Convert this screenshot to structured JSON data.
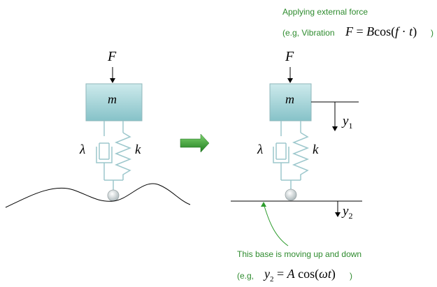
{
  "colors": {
    "green_text": "#2e8b2e",
    "mass_fill_top": "#bfe3e6",
    "mass_fill_bottom": "#86c2c8",
    "spring": "#9cc7cc",
    "arrow_green": "#2e9c2e"
  },
  "left_system": {
    "force_label": "F",
    "mass_label": "m",
    "damper_label": "λ",
    "spring_label": "k"
  },
  "right_system": {
    "force_label": "F",
    "mass_label": "m",
    "damper_label": "λ",
    "spring_label": "k",
    "y1_var": "y",
    "y1_sub": "1",
    "y2_var": "y",
    "y2_sub": "2"
  },
  "top_note": {
    "title": "Applying external force",
    "example_prefix": "(e.g, Vibration",
    "example_eq_F": "F",
    "example_eq_eq": " = ",
    "example_eq_B": "B",
    "example_eq_cos": "cos(",
    "example_eq_f": "f",
    "example_eq_dot": " · ",
    "example_eq_t": "t",
    "example_eq_close": ")",
    "example_suffix": ")"
  },
  "bottom_note": {
    "title": "This base is moving up and down",
    "example_prefix": "(e.g,",
    "example_eq_y": "y",
    "example_eq_sub": "2",
    "example_eq_eq": " = ",
    "example_eq_A": "A",
    "example_eq_cos": "cos(",
    "example_eq_w": "ωt",
    "example_eq_close": ")",
    "example_suffix": ")"
  },
  "transition_arrow": "arrow-right-icon"
}
